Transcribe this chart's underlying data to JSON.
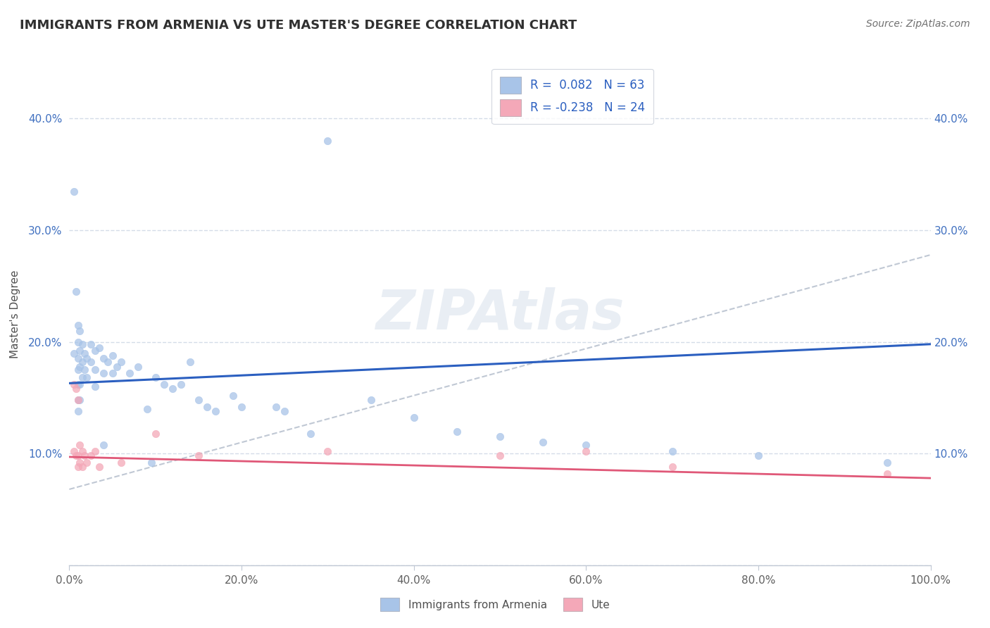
{
  "title": "IMMIGRANTS FROM ARMENIA VS UTE MASTER'S DEGREE CORRELATION CHART",
  "source": "Source: ZipAtlas.com",
  "watermark": "ZIPAtlas",
  "ylabel": "Master's Degree",
  "xlim": [
    0.0,
    1.0
  ],
  "ylim": [
    0.0,
    0.45
  ],
  "xticks": [
    0.0,
    0.2,
    0.4,
    0.6,
    0.8,
    1.0
  ],
  "xtick_labels": [
    "0.0%",
    "20.0%",
    "40.0%",
    "60.0%",
    "80.0%",
    "100.0%"
  ],
  "yticks": [
    0.0,
    0.1,
    0.2,
    0.3,
    0.4
  ],
  "ytick_labels_left": [
    "",
    "10.0%",
    "20.0%",
    "30.0%",
    "40.0%"
  ],
  "ytick_labels_right": [
    "",
    "10.0%",
    "20.0%",
    "30.0%",
    "40.0%"
  ],
  "legend1_label": "R =  0.082   N = 63",
  "legend2_label": "R = -0.238   N = 24",
  "blue_color": "#A8C4E8",
  "pink_color": "#F4A8B8",
  "blue_line_color": "#2B5FC0",
  "pink_line_color": "#E05878",
  "dashed_line_color": "#C0C8D4",
  "background_color": "#FFFFFF",
  "grid_color": "#D4DCE8",
  "title_color": "#303030",
  "source_color": "#707070",
  "tick_color_blue": "#4070C0",
  "tick_color_gray": "#606060",
  "blue_scatter": [
    [
      0.005,
      0.335
    ],
    [
      0.005,
      0.19
    ],
    [
      0.008,
      0.245
    ],
    [
      0.01,
      0.215
    ],
    [
      0.01,
      0.2
    ],
    [
      0.01,
      0.185
    ],
    [
      0.01,
      0.175
    ],
    [
      0.01,
      0.162
    ],
    [
      0.01,
      0.148
    ],
    [
      0.01,
      0.138
    ],
    [
      0.012,
      0.21
    ],
    [
      0.012,
      0.192
    ],
    [
      0.012,
      0.178
    ],
    [
      0.012,
      0.162
    ],
    [
      0.012,
      0.148
    ],
    [
      0.015,
      0.198
    ],
    [
      0.015,
      0.182
    ],
    [
      0.015,
      0.168
    ],
    [
      0.018,
      0.19
    ],
    [
      0.018,
      0.175
    ],
    [
      0.02,
      0.185
    ],
    [
      0.02,
      0.168
    ],
    [
      0.025,
      0.198
    ],
    [
      0.025,
      0.182
    ],
    [
      0.03,
      0.192
    ],
    [
      0.03,
      0.175
    ],
    [
      0.03,
      0.16
    ],
    [
      0.035,
      0.195
    ],
    [
      0.04,
      0.108
    ],
    [
      0.04,
      0.185
    ],
    [
      0.04,
      0.172
    ],
    [
      0.045,
      0.182
    ],
    [
      0.05,
      0.188
    ],
    [
      0.05,
      0.172
    ],
    [
      0.055,
      0.178
    ],
    [
      0.06,
      0.182
    ],
    [
      0.07,
      0.172
    ],
    [
      0.08,
      0.178
    ],
    [
      0.09,
      0.14
    ],
    [
      0.095,
      0.092
    ],
    [
      0.1,
      0.168
    ],
    [
      0.11,
      0.162
    ],
    [
      0.12,
      0.158
    ],
    [
      0.13,
      0.162
    ],
    [
      0.14,
      0.182
    ],
    [
      0.15,
      0.148
    ],
    [
      0.16,
      0.142
    ],
    [
      0.17,
      0.138
    ],
    [
      0.19,
      0.152
    ],
    [
      0.2,
      0.142
    ],
    [
      0.24,
      0.142
    ],
    [
      0.25,
      0.138
    ],
    [
      0.28,
      0.118
    ],
    [
      0.3,
      0.38
    ],
    [
      0.35,
      0.148
    ],
    [
      0.4,
      0.132
    ],
    [
      0.45,
      0.12
    ],
    [
      0.5,
      0.115
    ],
    [
      0.55,
      0.11
    ],
    [
      0.6,
      0.108
    ],
    [
      0.7,
      0.102
    ],
    [
      0.8,
      0.098
    ],
    [
      0.95,
      0.092
    ]
  ],
  "pink_scatter": [
    [
      0.005,
      0.162
    ],
    [
      0.005,
      0.102
    ],
    [
      0.008,
      0.158
    ],
    [
      0.008,
      0.098
    ],
    [
      0.01,
      0.148
    ],
    [
      0.01,
      0.098
    ],
    [
      0.01,
      0.088
    ],
    [
      0.012,
      0.108
    ],
    [
      0.012,
      0.092
    ],
    [
      0.015,
      0.102
    ],
    [
      0.015,
      0.088
    ],
    [
      0.018,
      0.098
    ],
    [
      0.02,
      0.092
    ],
    [
      0.025,
      0.098
    ],
    [
      0.03,
      0.102
    ],
    [
      0.035,
      0.088
    ],
    [
      0.06,
      0.092
    ],
    [
      0.1,
      0.118
    ],
    [
      0.15,
      0.098
    ],
    [
      0.3,
      0.102
    ],
    [
      0.5,
      0.098
    ],
    [
      0.6,
      0.102
    ],
    [
      0.7,
      0.088
    ],
    [
      0.95,
      0.082
    ]
  ],
  "blue_line_x": [
    0.0,
    1.0
  ],
  "blue_line_y": [
    0.163,
    0.198
  ],
  "pink_line_x": [
    0.0,
    1.0
  ],
  "pink_line_y": [
    0.097,
    0.078
  ],
  "dashed_line_x": [
    0.0,
    1.0
  ],
  "dashed_line_y": [
    0.068,
    0.278
  ]
}
